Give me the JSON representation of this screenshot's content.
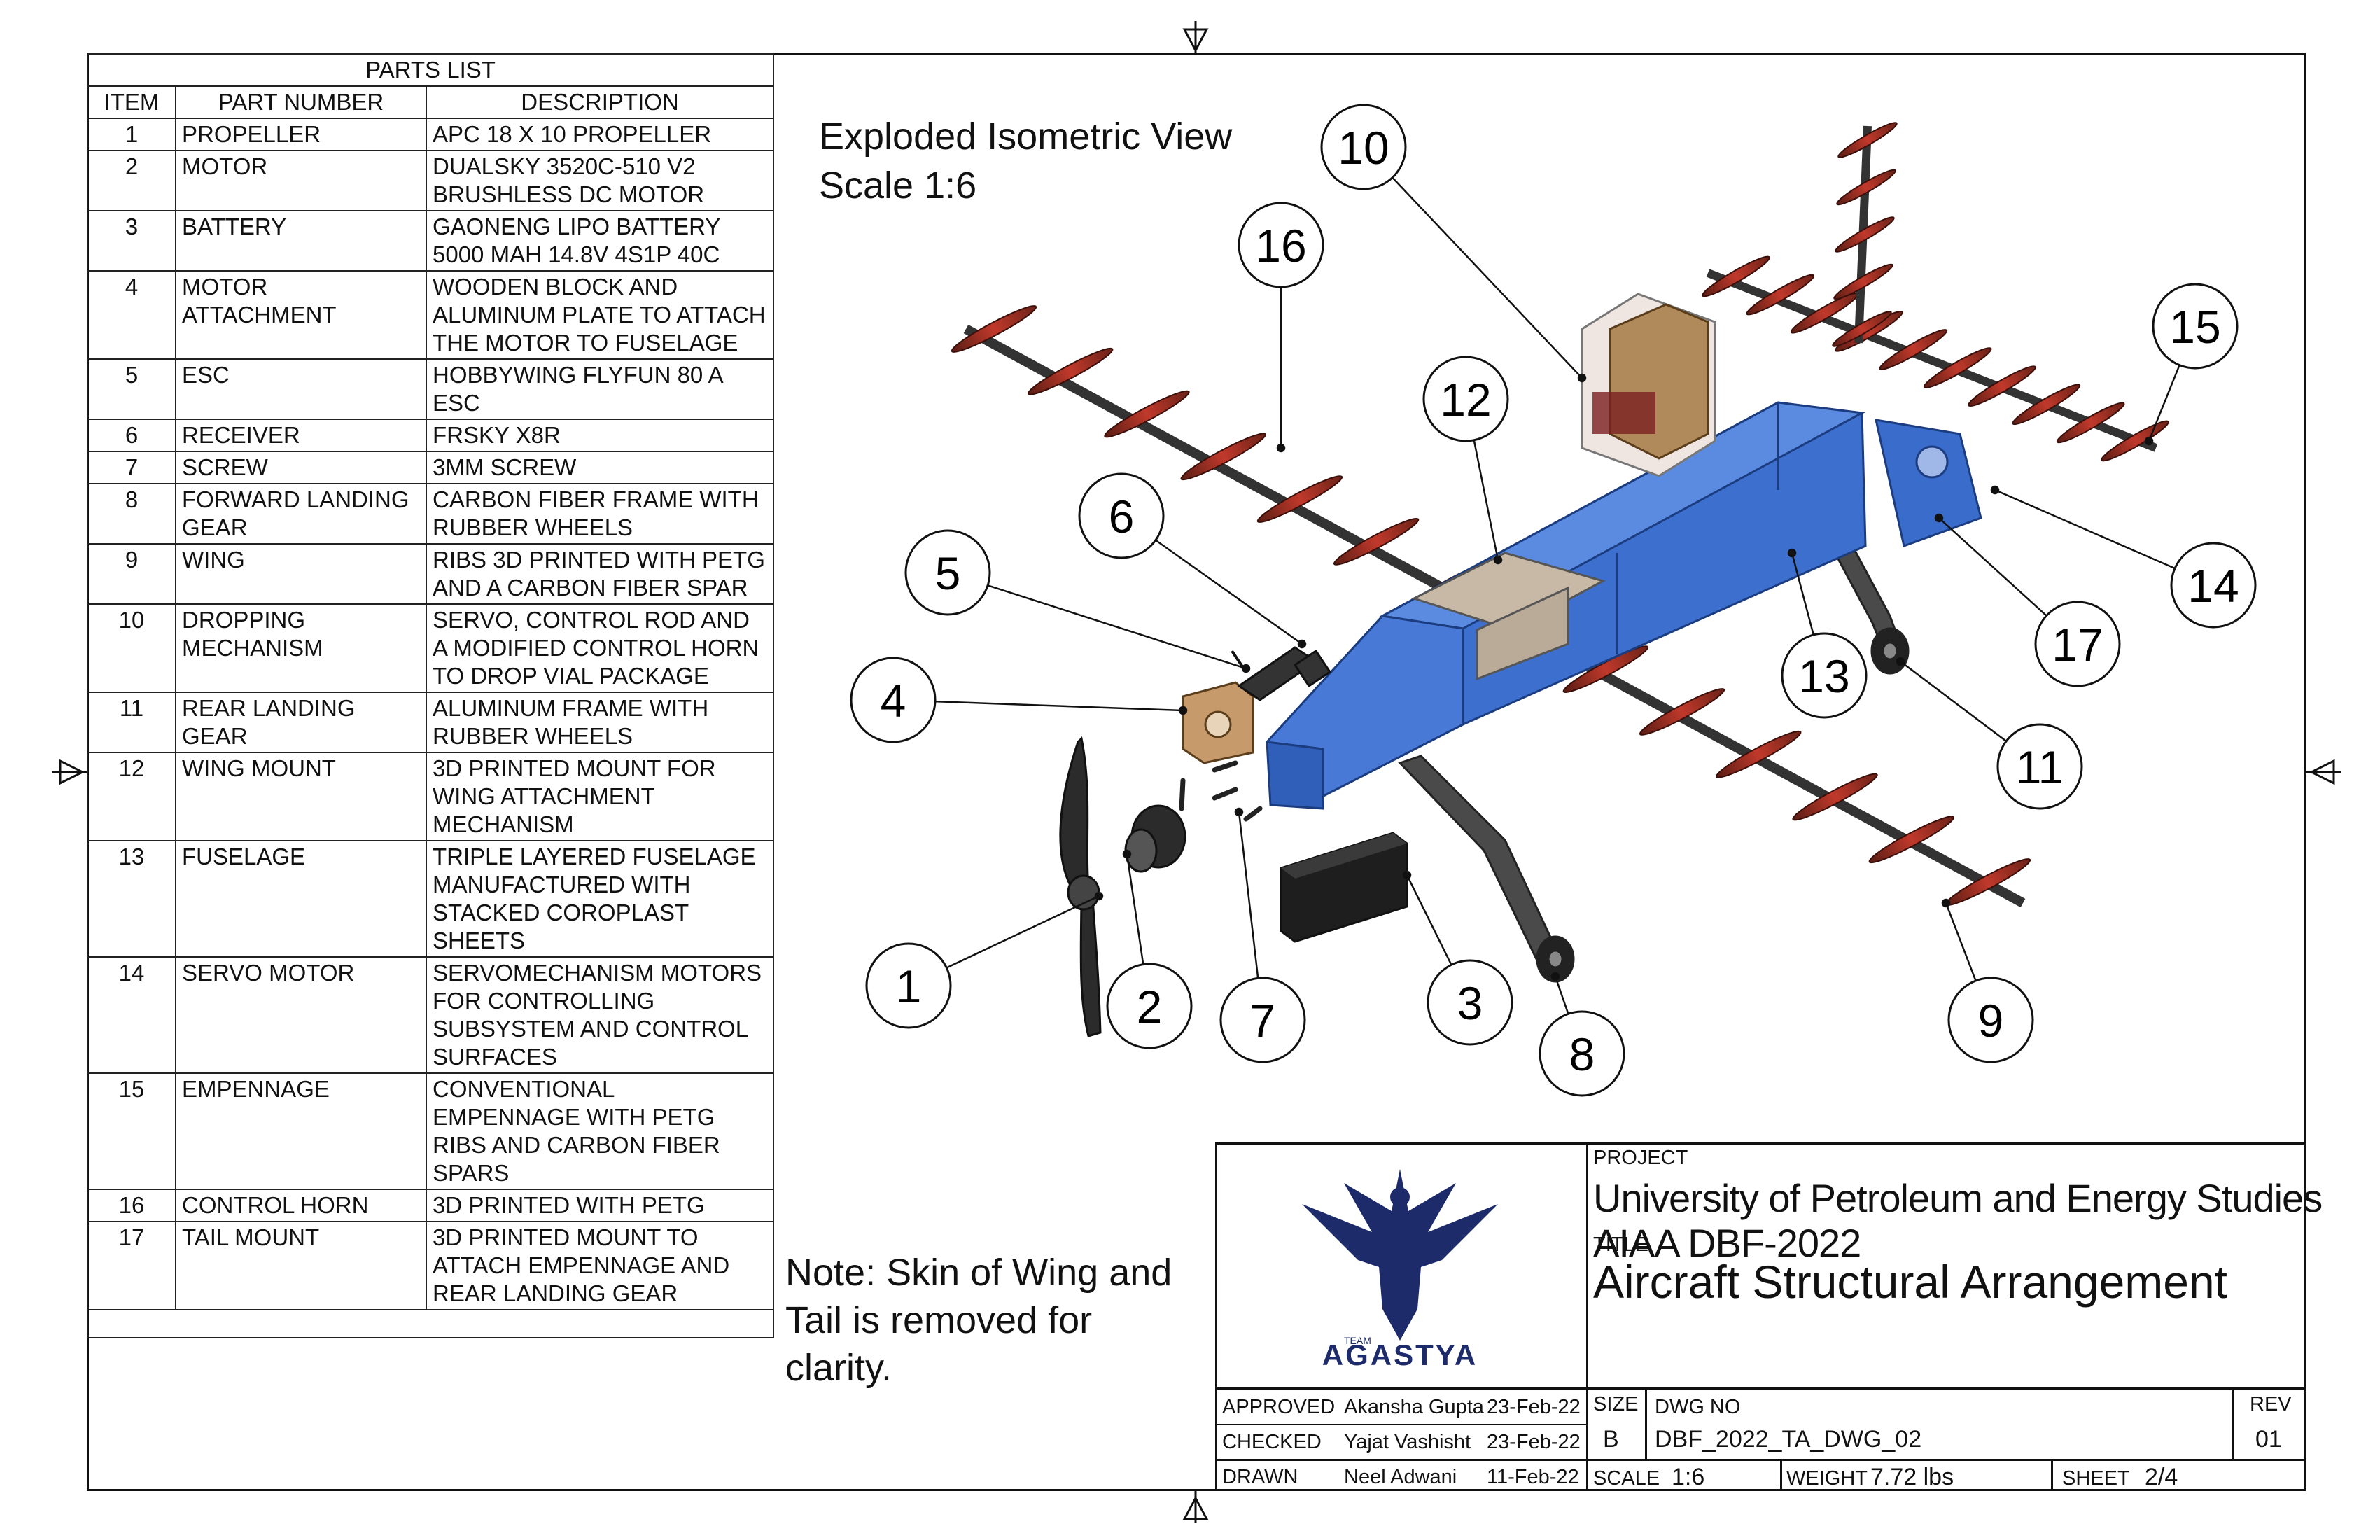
{
  "parts_list": {
    "title": "PARTS LIST",
    "headers": {
      "item": "ITEM",
      "part_number": "PART NUMBER",
      "description": "DESCRIPTION"
    },
    "rows": [
      {
        "item": "1",
        "part": "PROPELLER",
        "desc": "APC 18 X 10 PROPELLER"
      },
      {
        "item": "2",
        "part": "MOTOR",
        "desc": "DUALSKY 3520C-510 V2 BRUSHLESS DC MOTOR"
      },
      {
        "item": "3",
        "part": "BATTERY",
        "desc": "GAONENG LIPO BATTERY 5000 MAH 14.8V 4S1P 40C"
      },
      {
        "item": "4",
        "part": "MOTOR ATTACHMENT",
        "desc": "WOODEN BLOCK AND ALUMINUM PLATE TO ATTACH THE MOTOR TO FUSELAGE"
      },
      {
        "item": "5",
        "part": "ESC",
        "desc": "HOBBYWING FLYFUN 80 A ESC"
      },
      {
        "item": "6",
        "part": "RECEIVER",
        "desc": "FRSKY X8R"
      },
      {
        "item": "7",
        "part": "SCREW",
        "desc": "3MM SCREW"
      },
      {
        "item": "8",
        "part": "FORWARD LANDING GEAR",
        "desc": "CARBON FIBER FRAME WITH RUBBER WHEELS"
      },
      {
        "item": "9",
        "part": "WING",
        "desc": "RIBS 3D PRINTED WITH PETG AND A CARBON FIBER SPAR"
      },
      {
        "item": "10",
        "part": "DROPPING MECHANISM",
        "desc": "SERVO, CONTROL ROD AND A MODIFIED CONTROL HORN TO DROP VIAL PACKAGE"
      },
      {
        "item": "11",
        "part": "REAR LANDING GEAR",
        "desc": "ALUMINUM FRAME WITH RUBBER WHEELS"
      },
      {
        "item": "12",
        "part": "WING MOUNT",
        "desc": "3D PRINTED MOUNT FOR WING ATTACHMENT MECHANISM"
      },
      {
        "item": "13",
        "part": "FUSELAGE",
        "desc": "TRIPLE LAYERED FUSELAGE MANUFACTURED WITH STACKED COROPLAST SHEETS"
      },
      {
        "item": "14",
        "part": "SERVO MOTOR",
        "desc": "SERVOMECHANISM MOTORS FOR CONTROLLING SUBSYSTEM AND CONTROL SURFACES"
      },
      {
        "item": "15",
        "part": "EMPENNAGE",
        "desc": "CONVENTIONAL EMPENNAGE WITH PETG RIBS AND CARBON FIBER SPARS"
      },
      {
        "item": "16",
        "part": "CONTROL HORN",
        "desc": "3D PRINTED WITH PETG"
      },
      {
        "item": "17",
        "part": "TAIL MOUNT",
        "desc": "3D PRINTED MOUNT TO ATTACH EMPENNAGE AND REAR LANDING GEAR"
      }
    ]
  },
  "view": {
    "title_line1": "Exploded Isometric View",
    "title_line2": "Scale 1:6"
  },
  "note": {
    "line1": "Note: Skin of Wing and",
    "line2": "Tail is removed for",
    "line3": "clarity."
  },
  "balloons": [
    "1",
    "2",
    "3",
    "4",
    "5",
    "6",
    "7",
    "8",
    "9",
    "10",
    "11",
    "12",
    "13",
    "14",
    "15",
    "16",
    "17"
  ],
  "title_block": {
    "logo_text": "AGASTYA",
    "logo_subtext": "TEAM",
    "project_label": "PROJECT",
    "project": "University of Petroleum and Energy Studies AIAA DBF-2022",
    "title_label": "TITLE",
    "title": "Aircraft Structural Arrangement",
    "approved_label": "APPROVED",
    "approved_name": "Akansha Gupta",
    "approved_date": "23-Feb-22",
    "checked_label": "CHECKED",
    "checked_name": "Yajat Vashisht",
    "checked_date": "23-Feb-22",
    "drawn_label": "DRAWN",
    "drawn_name": "Neel Adwani",
    "drawn_date": "11-Feb-22",
    "size_label": "SIZE",
    "size": "B",
    "dwg_label": "DWG NO",
    "dwg": "DBF_2022_TA_DWG_02",
    "rev_label": "REV",
    "rev": "01",
    "scale_label": "SCALE",
    "scale": "1:6",
    "weight_label": "WEIGHT",
    "weight": "7.72 lbs",
    "sheet_label": "SHEET",
    "sheet": "2/4"
  },
  "colors": {
    "fuselage": "#3d6fcf",
    "rib": "#c0392b",
    "spar": "#333333"
  }
}
